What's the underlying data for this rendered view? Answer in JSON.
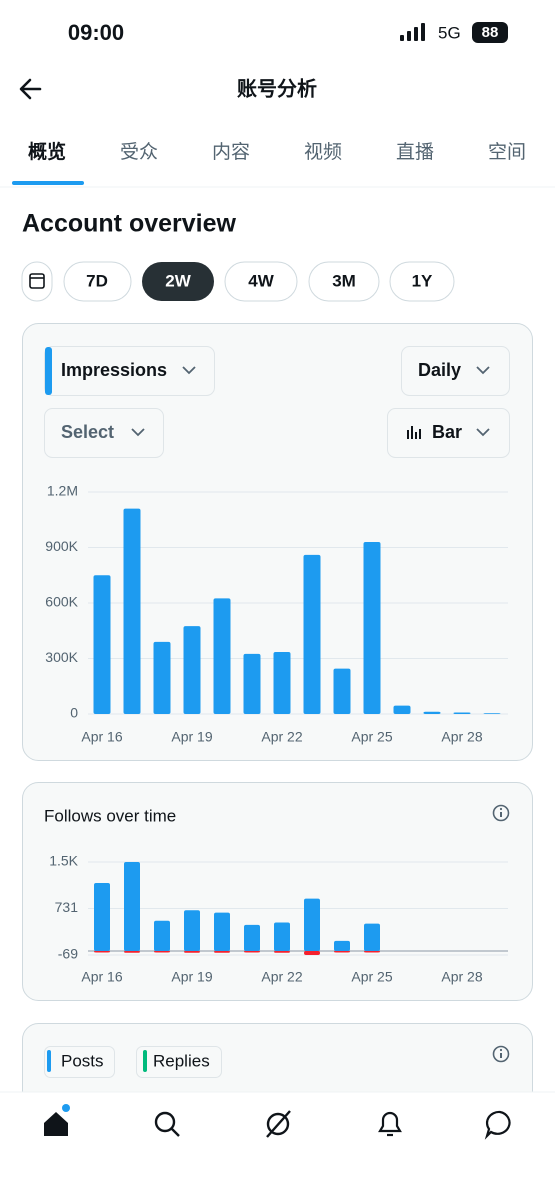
{
  "status_bar": {
    "time": "09:00",
    "network": "5G",
    "battery": "88"
  },
  "header": {
    "title": "账号分析"
  },
  "tabs": [
    "概览",
    "受众",
    "内容",
    "视频",
    "直播",
    "空间"
  ],
  "section_title": "Account overview",
  "ranges": [
    "7D",
    "2W",
    "4W",
    "3M",
    "1Y"
  ],
  "controls": {
    "metric": "Impressions",
    "interval": "Daily",
    "compare": "Select",
    "chart_style": "Bar"
  },
  "chart_data": [
    {
      "type": "bar",
      "color": "#1d9bf0",
      "categories": [
        "Apr 16",
        null,
        null,
        "Apr 19",
        null,
        null,
        "Apr 22",
        null,
        null,
        "Apr 25",
        null,
        null,
        "Apr 28",
        null
      ],
      "values": [
        750000,
        1110000,
        390000,
        475000,
        625000,
        325000,
        335000,
        860000,
        245000,
        930000,
        45000,
        12000,
        8000,
        4000
      ],
      "ylim": [
        0,
        1200000
      ],
      "yticks": [
        0,
        {
          "value": 300000,
          "label": "300K"
        },
        {
          "value": 600000,
          "label": "600K"
        },
        {
          "value": 900000,
          "label": "900K"
        },
        {
          "value": 1200000,
          "label": "1.2M"
        }
      ],
      "grid": true
    },
    {
      "type": "bar",
      "title": "Follows over time",
      "categories": [
        "Apr 16",
        null,
        null,
        "Apr 19",
        null,
        null,
        "Apr 22",
        null,
        null,
        "Apr 25",
        null,
        null,
        "Apr 28",
        null
      ],
      "series": [
        {
          "color": "#1d9bf0",
          "values": [
            1170,
            1530,
            520,
            700,
            660,
            450,
            490,
            900,
            175,
            470,
            0,
            0,
            0,
            0
          ]
        },
        {
          "color": "#f4212e",
          "values": [
            -25,
            -30,
            -25,
            -30,
            -30,
            -25,
            -30,
            -69,
            -25,
            -25,
            0,
            0,
            0,
            0
          ]
        }
      ],
      "ylim": [
        -69,
        1531
      ],
      "yticks": [
        -69,
        731,
        {
          "value": 1531,
          "label": "1.5K"
        }
      ],
      "grid": true
    }
  ],
  "posts_card": {
    "legend": [
      "Posts",
      "Replies"
    ]
  }
}
